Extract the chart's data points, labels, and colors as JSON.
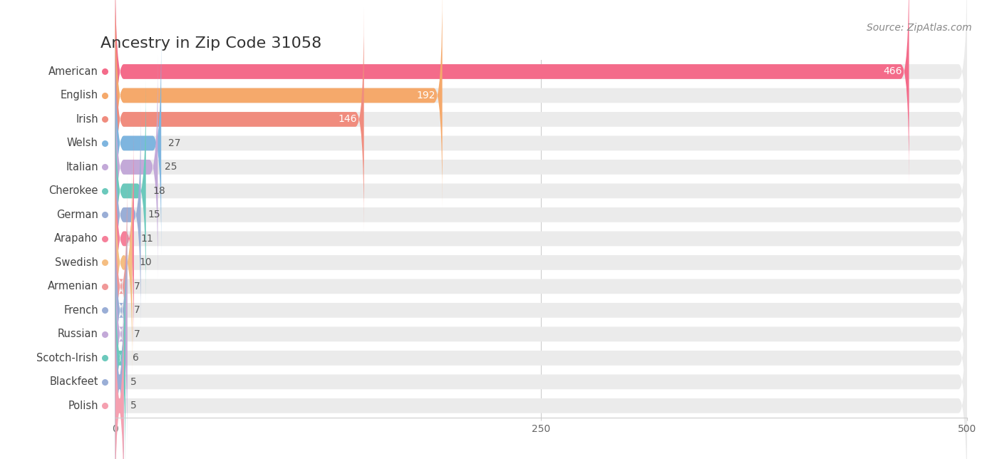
{
  "title": "Ancestry in Zip Code 31058",
  "source": "Source: ZipAtlas.com",
  "categories": [
    "American",
    "English",
    "Irish",
    "Welsh",
    "Italian",
    "Cherokee",
    "German",
    "Arapaho",
    "Swedish",
    "Armenian",
    "French",
    "Russian",
    "Scotch-Irish",
    "Blackfeet",
    "Polish"
  ],
  "values": [
    466,
    192,
    146,
    27,
    25,
    18,
    15,
    11,
    10,
    7,
    7,
    7,
    6,
    5,
    5
  ],
  "bar_colors": [
    "#F46B8A",
    "#F5A96B",
    "#F08C7E",
    "#7EB5DF",
    "#C3A9D8",
    "#6BC9BC",
    "#9AAED6",
    "#F5809A",
    "#F5BE82",
    "#F09898",
    "#9AAED6",
    "#C3A9D8",
    "#6BC9BC",
    "#9AAED6",
    "#F5A0B0"
  ],
  "background_color": "#ffffff",
  "bar_bg_color": "#ebebeb",
  "xlim_max": 500,
  "xticks": [
    0,
    250,
    500
  ],
  "title_fontsize": 16,
  "label_fontsize": 10.5,
  "value_fontsize": 10,
  "source_fontsize": 10,
  "bar_height": 0.62
}
